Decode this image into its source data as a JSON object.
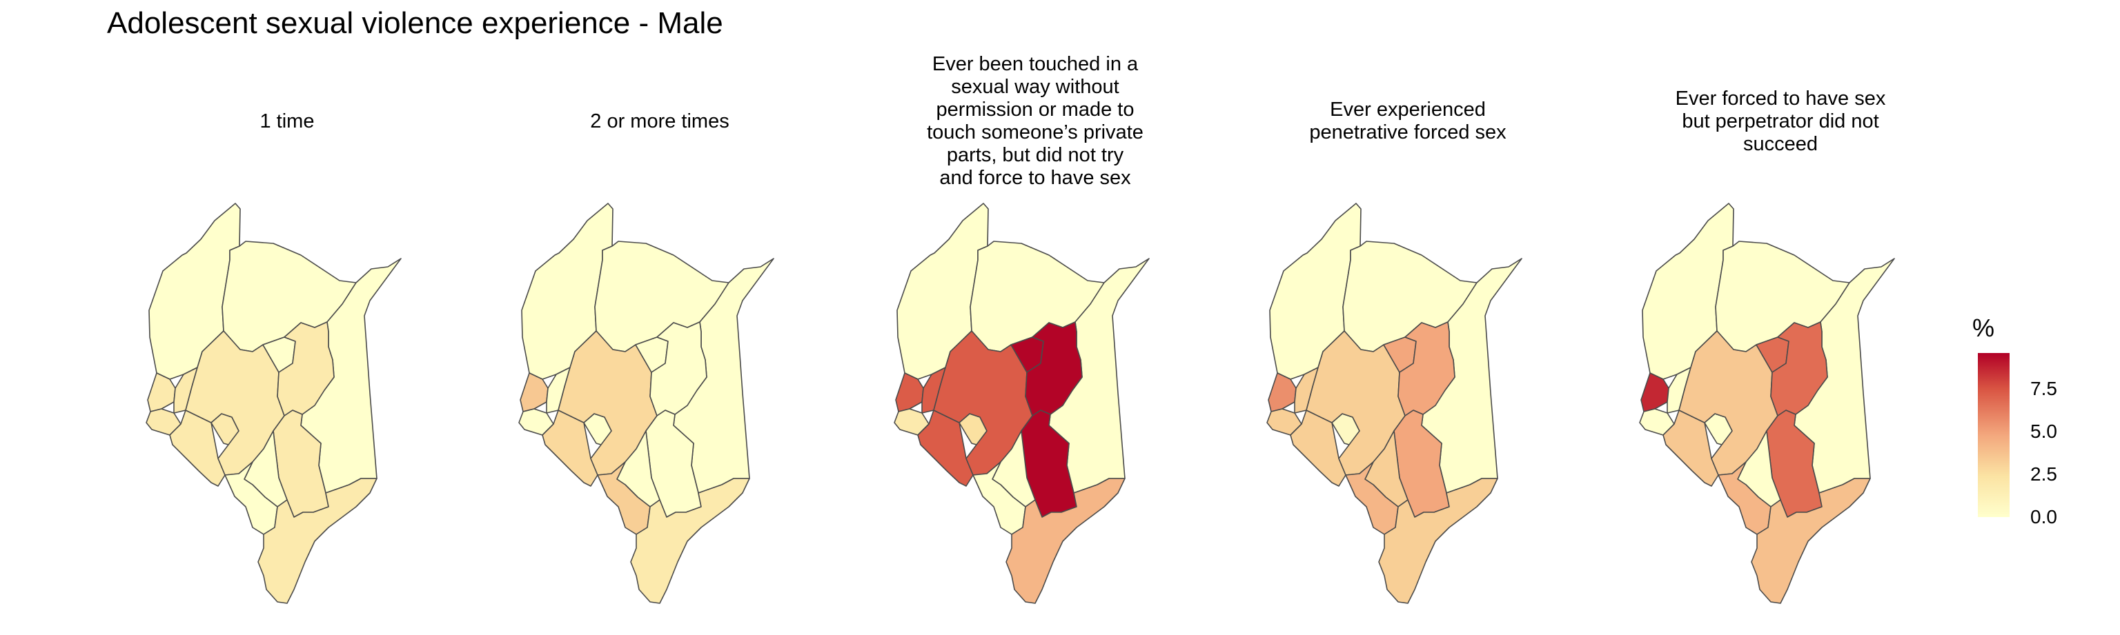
{
  "title": "Adolescent sexual violence experience - Male",
  "legend": {
    "title": "%",
    "ticks": [
      {
        "label": "7.5",
        "value": 7.5
      },
      {
        "label": "5.0",
        "value": 5.0
      },
      {
        "label": "2.5",
        "value": 2.5
      },
      {
        "label": "0.0",
        "value": 0.0
      }
    ],
    "min": 0,
    "max": 9.6,
    "colors": [
      "#ffffcc",
      "#fbe3a3",
      "#f3a77d",
      "#d95543",
      "#b10026"
    ]
  },
  "map_data": {
    "type": "choropleth",
    "country": "Kenya",
    "unit": "%",
    "panels": [
      {
        "title": "1 time",
        "region_values": {
          "north_west": 0.0,
          "north": 0.0,
          "north_east": 0.0,
          "west_a": 1.8,
          "west_b": 1.8,
          "west_c": 1.8,
          "lake_south": 1.8,
          "lake_small": 1.8,
          "rift_south": 1.8,
          "central_west": 0.0,
          "central_east": 1.8,
          "eastern": 1.8,
          "nairobi": 0.0,
          "south_central": 0.0,
          "coast": 1.8
        }
      },
      {
        "title": "2 or more times",
        "region_values": {
          "north_west": 0.0,
          "north": 0.0,
          "north_east": 0.0,
          "west_a": 3.5,
          "west_b": 0.0,
          "west_c": 0.0,
          "lake_south": 2.8,
          "lake_small": 0.0,
          "rift_south": 2.8,
          "central_west": 0.0,
          "central_east": 0.0,
          "eastern": 0.0,
          "nairobi": 0.0,
          "south_central": 3.2,
          "coast": 1.8
        }
      },
      {
        "title": "Ever been touched in a\nsexual way without\npermission or made to\ntouch someone’s private\nparts, but did not try\nand force to have sex",
        "region_values": {
          "north_west": 0.0,
          "north": 0.0,
          "north_east": 0.0,
          "west_a": 7.0,
          "west_b": 7.0,
          "west_c": 1.8,
          "lake_south": 7.0,
          "lake_small": 2.5,
          "rift_south": 7.0,
          "central_west": 9.5,
          "central_east": 9.5,
          "eastern": 9.5,
          "nairobi": 0.0,
          "south_central": 0.0,
          "coast": 4.2
        }
      },
      {
        "title": "Ever experienced\npenetrative forced sex",
        "region_values": {
          "north_west": 0.0,
          "north": 0.0,
          "north_east": 0.0,
          "west_a": 5.5,
          "west_b": 3.2,
          "west_c": 3.2,
          "lake_south": 3.2,
          "lake_small": 0.5,
          "rift_south": 3.2,
          "central_west": 4.8,
          "central_east": 4.8,
          "eastern": 4.8,
          "nairobi": 3.2,
          "south_central": 4.2,
          "coast": 3.2
        }
      },
      {
        "title": "Ever forced to have sex\nbut perpetrator did not\nsucceed",
        "region_values": {
          "north_west": 0.0,
          "north": 0.0,
          "north_east": 0.0,
          "west_a": 8.5,
          "west_b": 0.0,
          "west_c": 0.0,
          "lake_south": 3.5,
          "lake_small": 0.0,
          "rift_south": 3.5,
          "central_west": 6.5,
          "central_east": 6.5,
          "eastern": 6.5,
          "nairobi": 0.0,
          "south_central": 4.2,
          "coast": 3.8
        }
      }
    ]
  }
}
